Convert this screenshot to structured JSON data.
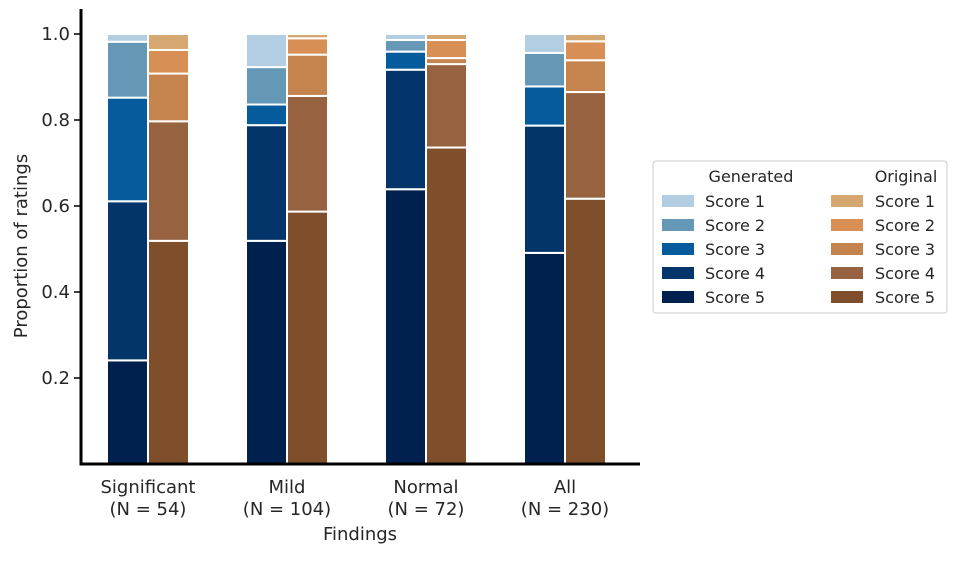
{
  "chart_data": {
    "type": "bar",
    "stacked": true,
    "xlabel": "Findings",
    "ylabel": "Proportion of ratings",
    "ylim": [
      0,
      1.05
    ],
    "yticks": [
      0.2,
      0.4,
      0.6,
      0.8,
      1.0
    ],
    "ytick_labels": [
      "0.2",
      "0.4",
      "0.6",
      "0.8",
      "1.0"
    ],
    "grid": false,
    "legend_position": "right",
    "categories": [
      {
        "name": "Significant",
        "n_label": "(N = 54)"
      },
      {
        "name": "Mild",
        "n_label": "(N = 104)"
      },
      {
        "name": "Normal",
        "n_label": "(N = 72)"
      },
      {
        "name": "All",
        "n_label": "(N = 230)"
      }
    ],
    "groups": [
      {
        "name": "Generated",
        "colors": {
          "Score 5": "#00204d",
          "Score 4": "#03356b",
          "Score 3": "#055b9c",
          "Score 2": "#6498b6",
          "Score 1": "#b3cee2"
        },
        "series": [
          {
            "name": "Score 5",
            "values": [
              0.241,
              0.519,
              0.639,
              0.491
            ]
          },
          {
            "name": "Score 4",
            "values": [
              0.37,
              0.269,
              0.278,
              0.296
            ]
          },
          {
            "name": "Score 3",
            "values": [
              0.241,
              0.048,
              0.042,
              0.091
            ]
          },
          {
            "name": "Score 2",
            "values": [
              0.13,
              0.087,
              0.027,
              0.078
            ]
          },
          {
            "name": "Score 1",
            "values": [
              0.018,
              0.077,
              0.014,
              0.044
            ]
          }
        ]
      },
      {
        "name": "Original",
        "colors": {
          "Score 5": "#7f4f2c",
          "Score 4": "#96623f",
          "Score 3": "#c5844e",
          "Score 2": "#d88f55",
          "Score 1": "#d5a771"
        },
        "series": [
          {
            "name": "Score 5",
            "values": [
              0.519,
              0.587,
              0.736,
              0.617
            ]
          },
          {
            "name": "Score 4",
            "values": [
              0.278,
              0.269,
              0.194,
              0.248
            ]
          },
          {
            "name": "Score 3",
            "values": [
              0.111,
              0.096,
              0.014,
              0.074
            ]
          },
          {
            "name": "Score 2",
            "values": [
              0.055,
              0.038,
              0.042,
              0.044
            ]
          },
          {
            "name": "Score 1",
            "values": [
              0.037,
              0.01,
              0.014,
              0.017
            ]
          }
        ]
      }
    ],
    "legend": {
      "columns": [
        {
          "title": "Generated",
          "entries": [
            "Score 1",
            "Score 2",
            "Score 3",
            "Score 4",
            "Score 5"
          ]
        },
        {
          "title": "Original",
          "entries": [
            "Score 1",
            "Score 2",
            "Score 3",
            "Score 4",
            "Score 5"
          ]
        }
      ]
    }
  }
}
